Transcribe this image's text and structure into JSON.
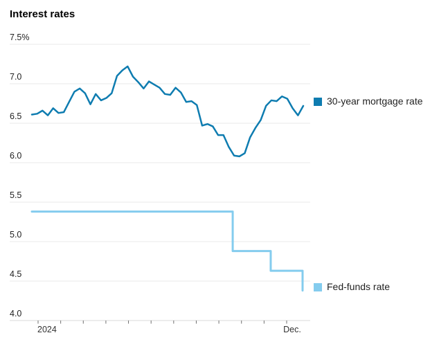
{
  "title": "Interest rates",
  "colors": {
    "mortgage": "#0e7cb0",
    "fed": "#84ccee",
    "grid": "#e8e8e8",
    "baseline": "#d9d9d9",
    "tick": "#707070",
    "axis_text": "#222222",
    "muted_text": "#333333"
  },
  "legend": [
    {
      "label": "30-year mortgage rate",
      "color": "#0e7cb0"
    },
    {
      "label": "Fed-funds rate",
      "color": "#84ccee"
    }
  ],
  "yaxis": {
    "labels": [
      "7.5%",
      "7.0",
      "6.5",
      "6.0",
      "5.5",
      "5.0",
      "4.5",
      "4.0"
    ],
    "values": [
      7.5,
      7.0,
      6.5,
      6.0,
      5.5,
      5.0,
      4.5,
      4.0
    ]
  },
  "xaxis": {
    "year_label": "2024",
    "dec_label": "Dec.",
    "tick_count": 12
  },
  "chart_data": {
    "type": "line",
    "title": "Interest rates",
    "ylabel": "%",
    "ylim": [
      4.0,
      7.5
    ],
    "x_domain": "weekly, start of 2024 through mid-December 2024",
    "grid": true,
    "legend_position": "right, aligned to line ends",
    "series": [
      {
        "name": "30-year mortgage rate",
        "type": "line",
        "color": "#0e7cb0",
        "values": [
          6.61,
          6.62,
          6.66,
          6.6,
          6.69,
          6.63,
          6.64,
          6.77,
          6.9,
          6.94,
          6.88,
          6.74,
          6.87,
          6.79,
          6.82,
          6.88,
          7.1,
          7.17,
          7.22,
          7.09,
          7.02,
          6.94,
          7.03,
          6.99,
          6.95,
          6.87,
          6.86,
          6.95,
          6.89,
          6.77,
          6.78,
          6.73,
          6.47,
          6.49,
          6.46,
          6.35,
          6.35,
          6.2,
          6.09,
          6.08,
          6.12,
          6.32,
          6.44,
          6.54,
          6.72,
          6.79,
          6.78,
          6.84,
          6.81,
          6.69,
          6.6,
          6.72
        ]
      },
      {
        "name": "Fed-funds rate",
        "type": "step",
        "color": "#84ccee",
        "levels": [
          5.38,
          4.88,
          4.63,
          4.38
        ],
        "step_fracs": [
          0.74,
          0.88,
          0.9974
        ]
      }
    ]
  }
}
